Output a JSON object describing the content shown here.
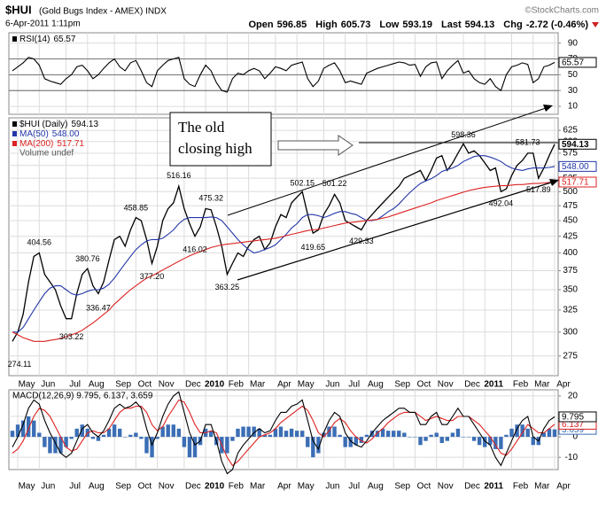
{
  "header": {
    "symbol": "$HUI",
    "description": "(Gold Bugs Index - AMEX) INDX",
    "source": "©StockCharts.com",
    "timestamp": "6-Apr-2011 1:11pm",
    "quote": [
      {
        "label": "Open",
        "value": "596.85"
      },
      {
        "label": "High",
        "value": "605.73"
      },
      {
        "label": "Low",
        "value": "593.19"
      },
      {
        "label": "Last",
        "value": "594.13"
      },
      {
        "label": "Chg",
        "value": "-2.72 (-0.46%)"
      }
    ]
  },
  "chart_data": [
    {
      "type": "line",
      "ylim": [
        0,
        103
      ],
      "yticks": [
        10,
        30,
        50,
        70,
        90
      ],
      "guides": [
        70,
        50,
        30
      ],
      "grid": true,
      "series": [
        {
          "name": "RSI(14)",
          "color": "#000000",
          "values": [
            55,
            60,
            65,
            72,
            70,
            62,
            45,
            42,
            40,
            38,
            45,
            50,
            60,
            62,
            55,
            45,
            50,
            58,
            65,
            70,
            60,
            55,
            65,
            68,
            55,
            40,
            35,
            55,
            62,
            68,
            70,
            72,
            45,
            38,
            35,
            50,
            62,
            55,
            40,
            30,
            28,
            45,
            52,
            50,
            55,
            58,
            55,
            45,
            52,
            60,
            58,
            55,
            62,
            64,
            66,
            45,
            35,
            42,
            58,
            62,
            65,
            55,
            40,
            42,
            40,
            38,
            52,
            55,
            58,
            60,
            62,
            64,
            66,
            65,
            62,
            63,
            48,
            60,
            65,
            66,
            45,
            55,
            62,
            68,
            52,
            55,
            45,
            40,
            38,
            45,
            35,
            30,
            50,
            60,
            62,
            65,
            63,
            40,
            45,
            60,
            62,
            65.57
          ]
        }
      ]
    },
    {
      "type": "line",
      "log_scale": true,
      "grid": true,
      "ylim": [
        256,
        654
      ],
      "yticks": [
        275,
        300,
        325,
        350,
        375,
        400,
        425,
        450,
        475,
        500,
        525,
        550,
        575,
        600,
        625
      ],
      "categories": [
        null,
        "May",
        null,
        null,
        null,
        "Jun",
        null,
        null,
        null,
        null,
        "Jul",
        null,
        null,
        null,
        "Aug",
        null,
        null,
        null,
        null,
        "Sep",
        null,
        null,
        null,
        "Oct",
        null,
        null,
        null,
        "Nov",
        null,
        null,
        null,
        null,
        "Dec",
        null,
        null,
        null,
        "2010",
        null,
        null,
        null,
        "Feb",
        null,
        null,
        null,
        "Mar",
        null,
        null,
        null,
        null,
        "Apr",
        null,
        null,
        null,
        "May",
        null,
        null,
        null,
        null,
        "Jun",
        null,
        null,
        null,
        "Jul",
        null,
        null,
        null,
        "Aug",
        null,
        null,
        null,
        null,
        "Sep",
        null,
        null,
        null,
        "Oct",
        null,
        null,
        null,
        "Nov",
        null,
        null,
        null,
        null,
        "Dec",
        null,
        null,
        null,
        "2011",
        null,
        null,
        null,
        null,
        "Feb",
        null,
        null,
        null,
        "Mar",
        null,
        null,
        null,
        "Apr"
      ],
      "series": [
        {
          "name": "$HUI (Daily)",
          "color": "#000000",
          "values": [
            290,
            300,
            320,
            360,
            395,
            400,
            370,
            360,
            350,
            330,
            315,
            315,
            345,
            370,
            378,
            355,
            345,
            360,
            390,
            420,
            425,
            410,
            435,
            455,
            450,
            420,
            385,
            410,
            450,
            470,
            480,
            510,
            470,
            445,
            425,
            440,
            470,
            468,
            440,
            410,
            370,
            385,
            400,
            395,
            410,
            420,
            425,
            405,
            415,
            440,
            460,
            455,
            480,
            490,
            500,
            460,
            430,
            435,
            460,
            475,
            495,
            480,
            450,
            445,
            440,
            435,
            450,
            460,
            470,
            480,
            490,
            500,
            510,
            525,
            530,
            535,
            540,
            520,
            540,
            565,
            570,
            540,
            555,
            575,
            595,
            575,
            580,
            570,
            555,
            540,
            545,
            500,
            505,
            530,
            550,
            560,
            575,
            575,
            525,
            545,
            570,
            594.13
          ]
        },
        {
          "name": "MA(50)",
          "color": "#2236a8",
          "last_label": "548.00",
          "values": [
            300,
            300,
            305,
            315,
            325,
            335,
            345,
            352,
            355,
            355,
            350,
            345,
            343,
            345,
            348,
            350,
            350,
            352,
            357,
            365,
            375,
            385,
            395,
            405,
            412,
            418,
            420,
            420,
            422,
            428,
            435,
            445,
            452,
            455,
            455,
            455,
            455,
            456,
            455,
            450,
            440,
            430,
            420,
            412,
            405,
            400,
            402,
            405,
            408,
            412,
            420,
            428,
            438,
            445,
            455,
            460,
            460,
            458,
            455,
            458,
            462,
            465,
            465,
            462,
            460,
            455,
            450,
            450,
            452,
            458,
            465,
            470,
            478,
            488,
            498,
            507,
            515,
            520,
            524,
            530,
            538,
            542,
            545,
            550,
            558,
            563,
            568,
            570,
            570,
            567,
            563,
            558,
            550,
            545,
            542,
            540,
            543,
            545,
            545,
            545,
            546,
            548
          ]
        },
        {
          "name": "MA(200)",
          "color": "#dd2222",
          "values": [
            300,
            297,
            294,
            292,
            290,
            290,
            290,
            291,
            292,
            293,
            295,
            297,
            299,
            302,
            306,
            310,
            315,
            320,
            325,
            332,
            338,
            344,
            350,
            355,
            360,
            365,
            368,
            372,
            376,
            380,
            384,
            388,
            392,
            396,
            399,
            402,
            405,
            408,
            410,
            412,
            413,
            414,
            415,
            416,
            417,
            418,
            419,
            420,
            421,
            422,
            424,
            426,
            428,
            430,
            432,
            434,
            435,
            436,
            438,
            440,
            442,
            444,
            446,
            447,
            448,
            449,
            450,
            451,
            452,
            454,
            456,
            459,
            462,
            465,
            468,
            471,
            474,
            477,
            480,
            484,
            487,
            490,
            493,
            496,
            499,
            502,
            504,
            506,
            508,
            509,
            510,
            511,
            511,
            512,
            513,
            513,
            514,
            515,
            515,
            516,
            517,
            517.71
          ]
        }
      ],
      "volume_label": "Volume undef",
      "swing_labels": [
        274.11,
        null,
        null,
        null,
        null,
        404.56,
        null,
        null,
        null,
        null,
        null,
        303.22,
        null,
        null,
        380.76,
        null,
        336.47,
        null,
        null,
        null,
        null,
        null,
        null,
        458.85,
        null,
        null,
        {
          "value": 377.2,
          "label": "377.20"
        },
        null,
        null,
        null,
        null,
        516.16,
        null,
        null,
        416.02,
        null,
        null,
        475.32,
        null,
        null,
        363.25,
        null,
        null,
        null,
        null,
        null,
        null,
        null,
        null,
        null,
        null,
        null,
        null,
        null,
        502.15,
        null,
        419.65,
        null,
        null,
        null,
        501.22,
        null,
        null,
        null,
        null,
        429.33,
        null,
        null,
        null,
        null,
        null,
        null,
        null,
        null,
        null,
        null,
        null,
        null,
        null,
        null,
        null,
        null,
        null,
        null,
        598.36,
        null,
        null,
        null,
        null,
        null,
        null,
        492.04,
        null,
        null,
        null,
        null,
        581.73,
        null,
        517.89,
        null,
        null,
        null
      ],
      "annotation": [
        "The old",
        "closing high"
      ]
    },
    {
      "type": "line",
      "grid": true,
      "ylim": [
        -16,
        23
      ],
      "yticks": [
        -10,
        0,
        10,
        20
      ],
      "legend": "MACD(12,26,9) 9.795, 6.137, 3.659",
      "categories": [
        null,
        "May",
        null,
        null,
        null,
        "Jun",
        null,
        null,
        null,
        null,
        "Jul",
        null,
        null,
        null,
        "Aug",
        null,
        null,
        null,
        null,
        "Sep",
        null,
        null,
        null,
        "Oct",
        null,
        null,
        null,
        "Nov",
        null,
        null,
        null,
        null,
        "Dec",
        null,
        null,
        null,
        "2010",
        null,
        null,
        null,
        "Feb",
        null,
        null,
        null,
        "Mar",
        null,
        null,
        null,
        null,
        "Apr",
        null,
        null,
        null,
        "May",
        null,
        null,
        null,
        null,
        "Jun",
        null,
        null,
        null,
        "Jul",
        null,
        null,
        null,
        "Aug",
        null,
        null,
        null,
        null,
        "Sep",
        null,
        null,
        null,
        "Oct",
        null,
        null,
        null,
        "Nov",
        null,
        null,
        null,
        null,
        "Dec",
        null,
        null,
        null,
        "2011",
        null,
        null,
        null,
        null,
        "Feb",
        null,
        null,
        null,
        "Mar",
        null,
        null,
        null,
        "Apr"
      ],
      "series": [
        {
          "type": "bar",
          "color": "#3b6eb5",
          "values": [
            3,
            6,
            8,
            10,
            8,
            2,
            -5,
            -8,
            -8,
            -8,
            -5,
            -1,
            4,
            6,
            4,
            -1,
            -2,
            1,
            4,
            6,
            4,
            0,
            1,
            2,
            -1,
            -8,
            -10,
            -1,
            5,
            6,
            6,
            4,
            -5,
            -10,
            -10,
            -4,
            4,
            3,
            -4,
            -8,
            -8,
            -2,
            4,
            5,
            5,
            5,
            4,
            1,
            1,
            4,
            5,
            3,
            4,
            3,
            3,
            -5,
            -10,
            -8,
            2,
            5,
            5,
            1,
            -5,
            -5,
            -4,
            -3,
            1,
            3,
            3,
            4,
            3,
            3,
            3,
            2,
            0,
            0,
            -4,
            -2,
            1,
            2,
            -3,
            -2,
            2,
            4,
            0,
            0,
            -2,
            -4,
            -5,
            -4,
            -6,
            -6,
            1,
            4,
            6,
            6,
            4,
            -4,
            -4,
            2,
            4,
            3.659
          ]
        },
        {
          "color": "#dd2222",
          "values": [
            -8,
            -6,
            -2,
            4,
            10,
            14,
            13,
            10,
            5,
            0,
            -5,
            -7,
            -6,
            -2,
            2,
            3,
            2,
            2,
            4,
            8,
            12,
            14,
            14,
            15,
            15,
            12,
            6,
            3,
            5,
            10,
            14,
            18,
            17,
            12,
            6,
            2,
            2,
            3,
            2,
            -4,
            -10,
            -14,
            -12,
            -9,
            -6,
            -3,
            0,
            1,
            2,
            4,
            7,
            9,
            11,
            13,
            15,
            13,
            8,
            2,
            0,
            3,
            7,
            9,
            7,
            3,
            0,
            -2,
            -3,
            -1,
            2,
            4,
            7,
            9,
            11,
            12,
            12,
            12,
            10,
            8,
            9,
            10,
            9,
            8,
            8,
            10,
            10,
            10,
            8,
            6,
            3,
            0,
            -4,
            -8,
            -9,
            -6,
            -2,
            2,
            6,
            4,
            2,
            2,
            4,
            6.137
          ]
        },
        {
          "color": "#000000",
          "values": [
            -5,
            0,
            6,
            14,
            18,
            16,
            8,
            2,
            -3,
            -8,
            -10,
            -8,
            -2,
            4,
            6,
            2,
            0,
            3,
            8,
            14,
            16,
            14,
            15,
            17,
            14,
            4,
            -4,
            2,
            10,
            16,
            20,
            22,
            12,
            2,
            -4,
            -2,
            6,
            6,
            -2,
            -12,
            -18,
            -16,
            -8,
            -4,
            -1,
            2,
            4,
            2,
            3,
            8,
            12,
            12,
            15,
            16,
            18,
            8,
            -2,
            -6,
            2,
            8,
            12,
            10,
            2,
            -2,
            -4,
            -5,
            -2,
            2,
            5,
            8,
            10,
            12,
            14,
            14,
            12,
            12,
            6,
            6,
            10,
            12,
            6,
            6,
            10,
            14,
            10,
            10,
            6,
            2,
            -2,
            -4,
            -10,
            -14,
            -8,
            -2,
            4,
            8,
            10,
            0,
            -2,
            4,
            8,
            9.795
          ]
        }
      ]
    }
  ]
}
